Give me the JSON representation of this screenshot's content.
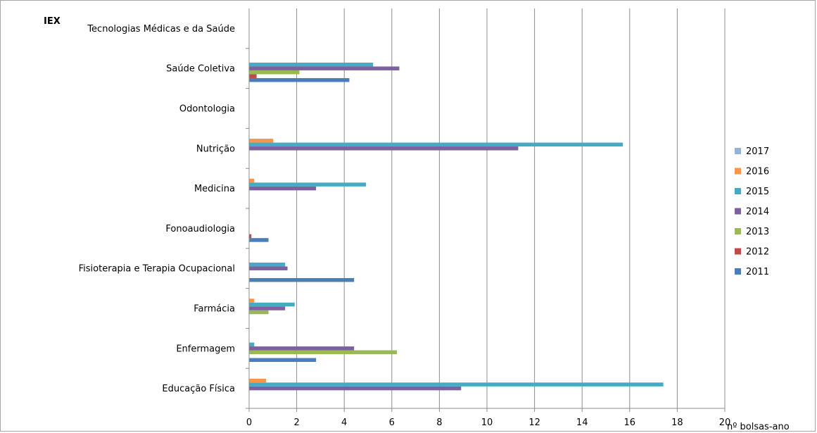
{
  "chart_data": {
    "type": "bar",
    "orientation": "horizontal",
    "title": "IEX",
    "xlabel": "nº bolsas-ano",
    "ylabel": "",
    "xlim": [
      0,
      20
    ],
    "xticks": [
      "0",
      "2",
      "4",
      "6",
      "8",
      "10",
      "12",
      "14",
      "16",
      "18",
      "20"
    ],
    "grid": true,
    "legend_position": "right",
    "categories": [
      "Educação Física",
      "Enfermagem",
      "Farmácia",
      "Fisioterapia e Terapia Ocupacional",
      "Fonoaudiologia",
      "Medicina",
      "Nutrição",
      "Odontologia",
      "Saúde Coletiva",
      "Tecnologias Médicas e da Saúde"
    ],
    "series": [
      {
        "name": "2011",
        "color": "#4a7ebb",
        "values": [
          0,
          2.8,
          0,
          4.4,
          0.8,
          0,
          0,
          0,
          4.2,
          0
        ]
      },
      {
        "name": "2012",
        "color": "#be4b48",
        "values": [
          0,
          0,
          0,
          0,
          0.08,
          0,
          0,
          0,
          0.3,
          0
        ]
      },
      {
        "name": "2013",
        "color": "#98b954",
        "values": [
          0,
          6.2,
          0.8,
          0,
          0,
          0,
          0,
          0,
          2.1,
          0
        ]
      },
      {
        "name": "2014",
        "color": "#7d60a0",
        "values": [
          8.9,
          4.4,
          1.5,
          1.6,
          0,
          2.8,
          11.3,
          0,
          6.3,
          0
        ]
      },
      {
        "name": "2015",
        "color": "#46aac5",
        "values": [
          17.4,
          0.2,
          1.9,
          1.5,
          0,
          4.9,
          15.7,
          0,
          5.2,
          0
        ]
      },
      {
        "name": "2016",
        "color": "#f79646",
        "values": [
          0.7,
          0,
          0.2,
          0,
          0,
          0.2,
          1.0,
          0,
          0,
          0
        ]
      },
      {
        "name": "2017",
        "color": "#95b3d7",
        "values": [
          0,
          0,
          0,
          0,
          0,
          0,
          0,
          0,
          0,
          0
        ]
      }
    ],
    "legend_order": [
      "2017",
      "2016",
      "2015",
      "2014",
      "2013",
      "2012",
      "2011"
    ]
  }
}
